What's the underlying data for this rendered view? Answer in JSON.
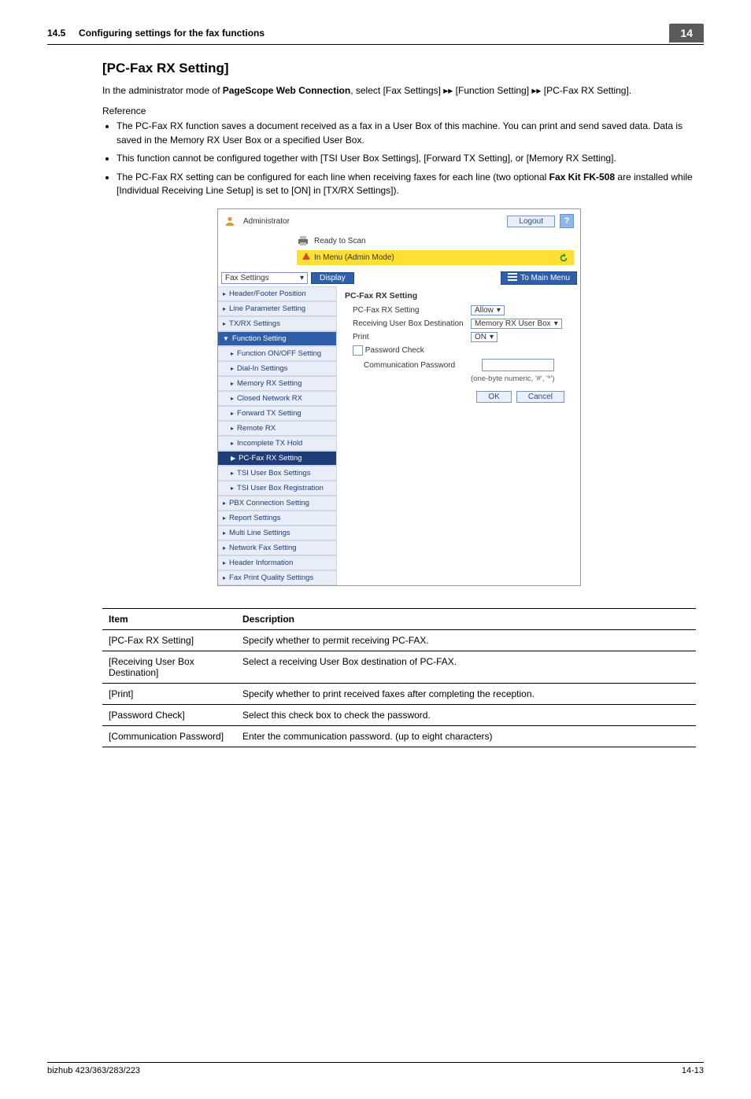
{
  "header": {
    "section_no": "14.5",
    "section_title": "Configuring settings for the fax functions",
    "chapter_badge": "14"
  },
  "title": "[PC-Fax RX Setting]",
  "intro_parts": {
    "p1": "In the administrator mode of ",
    "bold1": "PageScope Web Connection",
    "p2": ", select [Fax Settings] ",
    "arrow1": "▸▸",
    "p3": " [Function Setting] ",
    "arrow2": "▸▸",
    "p4": " [PC-Fax RX Setting]."
  },
  "reference_label": "Reference",
  "bullets": [
    "The PC-Fax RX function saves a document received as a fax in a User Box of this machine. You can print and send saved data. Data is saved in the Memory RX User Box or a specified User Box.",
    "This function cannot be configured together with [TSI User Box Settings], [Forward TX Setting], or [Memory RX Setting]."
  ],
  "bullet3": {
    "a": "The PC-Fax RX setting can be configured for each line when receiving faxes for each line (two optional ",
    "bold": "Fax Kit FK-508",
    "b": " are installed while [Individual Receiving Line Setup] is set to [ON] in [TX/RX Settings])."
  },
  "screenshot": {
    "admin_label": "Administrator",
    "logout": "Logout",
    "help": "?",
    "ready": "Ready to Scan",
    "yellow_label": "In Menu (Admin Mode)",
    "dropdown": "Fax Settings",
    "display_btn": "Display",
    "to_main": "To Main Menu",
    "sidebar": [
      {
        "label": "Header/Footer Position",
        "level": 1
      },
      {
        "label": "Line Parameter Setting",
        "level": 1
      },
      {
        "label": "TX/RX Settings",
        "level": 1
      },
      {
        "label": "Function Setting",
        "level": 1,
        "dark": true,
        "tri": "▼"
      },
      {
        "label": "Function ON/OFF Setting",
        "level": 2
      },
      {
        "label": "Dial-In Settings",
        "level": 2
      },
      {
        "label": "Memory RX Setting",
        "level": 2
      },
      {
        "label": "Closed Network RX",
        "level": 2
      },
      {
        "label": "Forward TX Setting",
        "level": 2
      },
      {
        "label": "Remote RX",
        "level": 2
      },
      {
        "label": "Incomplete TX Hold",
        "level": 2
      },
      {
        "label": "PC-Fax RX Setting",
        "level": 2,
        "sel": true,
        "tri": "▶"
      },
      {
        "label": "TSI User Box Settings",
        "level": 2
      },
      {
        "label": "TSI User Box Registration",
        "level": 2
      },
      {
        "label": "PBX Connection Setting",
        "level": 1
      },
      {
        "label": "Report Settings",
        "level": 1
      },
      {
        "label": "Multi Line Settings",
        "level": 1
      },
      {
        "label": "Network Fax Setting",
        "level": 1
      },
      {
        "label": "Header Information",
        "level": 1
      },
      {
        "label": "Fax Print Quality Settings",
        "level": 1
      }
    ],
    "form": {
      "title": "PC-Fax RX Setting",
      "r1_label": "PC-Fax RX Setting",
      "r1_value": "Allow",
      "r2_label": "Receiving User Box Destination",
      "r2_value": "Memory RX User Box",
      "r3_label": "Print",
      "r3_value": "ON",
      "r4_label": "Password Check",
      "r5_label": "Communication Password",
      "hint": "(one-byte numeric, '#', '*')",
      "ok": "OK",
      "cancel": "Cancel"
    }
  },
  "table": {
    "head_item": "Item",
    "head_desc": "Description",
    "rows": [
      {
        "item": "[PC-Fax RX Setting]",
        "desc": "Specify whether to permit receiving PC-FAX."
      },
      {
        "item": "[Receiving User Box Destination]",
        "desc": "Select a receiving User Box destination of PC-FAX."
      },
      {
        "item": "[Print]",
        "desc": "Specify whether to print received faxes after completing the reception."
      },
      {
        "item": "[Password Check]",
        "desc": "Select this check box to check the password."
      },
      {
        "item": "[Communication Password]",
        "desc": "Enter the communication password. (up to eight characters)"
      }
    ]
  },
  "footer": {
    "left": "bizhub 423/363/283/223",
    "right": "14-13"
  }
}
